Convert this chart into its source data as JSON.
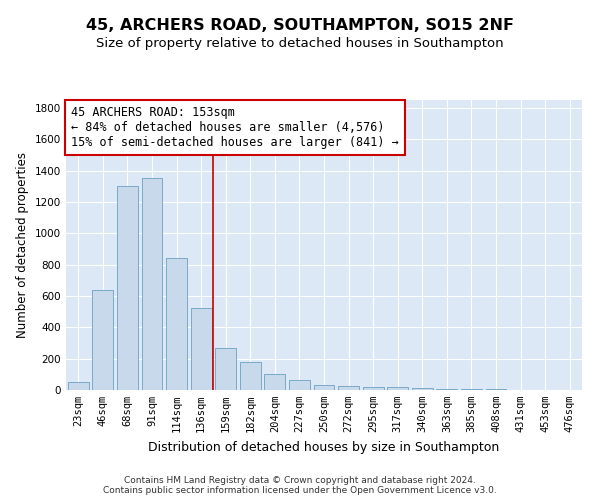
{
  "title": "45, ARCHERS ROAD, SOUTHAMPTON, SO15 2NF",
  "subtitle": "Size of property relative to detached houses in Southampton",
  "xlabel": "Distribution of detached houses by size in Southampton",
  "ylabel": "Number of detached properties",
  "categories": [
    "23sqm",
    "46sqm",
    "68sqm",
    "91sqm",
    "114sqm",
    "136sqm",
    "159sqm",
    "182sqm",
    "204sqm",
    "227sqm",
    "250sqm",
    "272sqm",
    "295sqm",
    "317sqm",
    "340sqm",
    "363sqm",
    "385sqm",
    "408sqm",
    "431sqm",
    "453sqm",
    "476sqm"
  ],
  "values": [
    50,
    640,
    1300,
    1350,
    840,
    525,
    270,
    180,
    100,
    65,
    30,
    28,
    20,
    17,
    12,
    8,
    5,
    5,
    3,
    3,
    3
  ],
  "bar_color": "#c9d9ec",
  "bar_edge_color": "#7aaac8",
  "vline_x_index": 5.5,
  "vline_color": "#cc0000",
  "annotation_text": "45 ARCHERS ROAD: 153sqm\n← 84% of detached houses are smaller (4,576)\n15% of semi-detached houses are larger (841) →",
  "annotation_box_facecolor": "#ffffff",
  "annotation_box_edgecolor": "#cc0000",
  "ylim": [
    0,
    1850
  ],
  "yticks": [
    0,
    200,
    400,
    600,
    800,
    1000,
    1200,
    1400,
    1600,
    1800
  ],
  "plot_bg_color": "#dce8f5",
  "fig_bg_color": "#ffffff",
  "footer_line1": "Contains HM Land Registry data © Crown copyright and database right 2024.",
  "footer_line2": "Contains public sector information licensed under the Open Government Licence v3.0.",
  "title_fontsize": 11.5,
  "subtitle_fontsize": 9.5,
  "xlabel_fontsize": 9,
  "ylabel_fontsize": 8.5,
  "tick_fontsize": 7.5,
  "annotation_fontsize": 8.5,
  "footer_fontsize": 6.5
}
